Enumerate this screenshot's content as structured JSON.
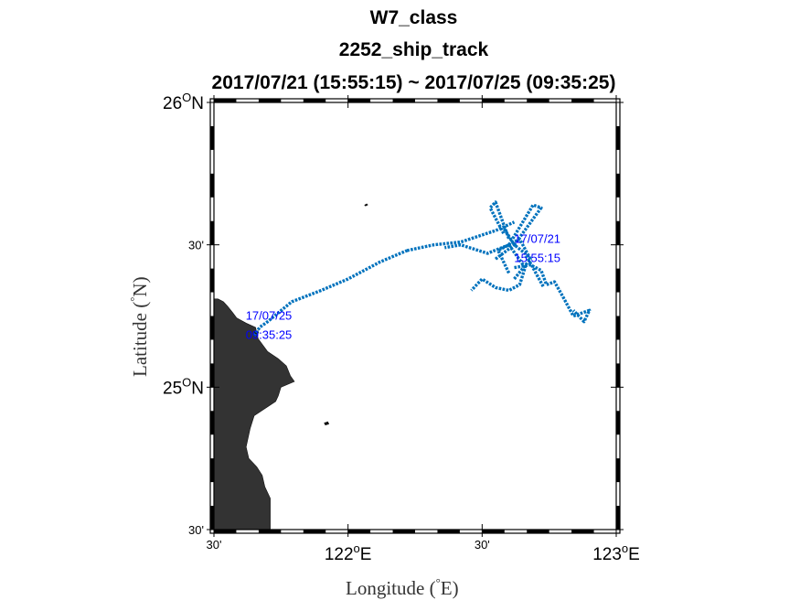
{
  "title": {
    "line1": "W7_class",
    "line2": "2252_ship_track",
    "line3": "2017/07/21 (15:55:15) ~ 2017/07/25 (09:35:25)"
  },
  "axes": {
    "xlabel_main": "Longitude (",
    "xlabel_sup": "°",
    "xlabel_unit": "E)",
    "ylabel_main": "Latitude (",
    "ylabel_sup": "°",
    "ylabel_unit": "N)",
    "x_ticks": [
      {
        "value": 121.5,
        "main": "30'",
        "sup": "",
        "small": true
      },
      {
        "value": 122.0,
        "main": "122",
        "sup": "o",
        "suffix": "E",
        "small": false
      },
      {
        "value": 122.5,
        "main": "30'",
        "sup": "",
        "small": true
      },
      {
        "value": 123.0,
        "main": "123",
        "sup": "o",
        "suffix": "E",
        "small": false
      }
    ],
    "y_ticks": [
      {
        "value": 24.5,
        "main": "30'",
        "sup": "",
        "small": true
      },
      {
        "value": 25.0,
        "main": "25",
        "sup": "O",
        "suffix": "N",
        "small": false
      },
      {
        "value": 25.5,
        "main": "30'",
        "sup": "",
        "small": true
      },
      {
        "value": 26.0,
        "main": "26",
        "sup": "O",
        "suffix": "N",
        "small": false
      }
    ]
  },
  "chart_data": {
    "type": "scatter",
    "xlim": [
      121.5,
      123.0
    ],
    "ylim": [
      24.5,
      26.0
    ],
    "grid": false,
    "track_color": "#0072bd",
    "land_color": "#333333",
    "label_color": "#0000ff",
    "start_label": {
      "date": "17/07/21",
      "time": "15:55:15",
      "lon": 122.74,
      "lat": 25.52
    },
    "end_label": {
      "date": "17/07/25",
      "time": "09:35:25",
      "lon": 121.65,
      "lat": 25.25
    },
    "land_polygon": [
      [
        121.5,
        25.31
      ],
      [
        121.515,
        25.31
      ],
      [
        121.535,
        25.3
      ],
      [
        121.55,
        25.285
      ],
      [
        121.57,
        25.262
      ],
      [
        121.585,
        25.243
      ],
      [
        121.62,
        25.225
      ],
      [
        121.655,
        25.21
      ],
      [
        121.665,
        25.17
      ],
      [
        121.7,
        25.125
      ],
      [
        121.74,
        25.1
      ],
      [
        121.77,
        25.075
      ],
      [
        121.785,
        25.04
      ],
      [
        121.8,
        25.02
      ],
      [
        121.75,
        25.0
      ],
      [
        121.74,
        24.97
      ],
      [
        121.73,
        24.95
      ],
      [
        121.65,
        24.9
      ],
      [
        121.635,
        24.855
      ],
      [
        121.62,
        24.79
      ],
      [
        121.63,
        24.75
      ],
      [
        121.66,
        24.72
      ],
      [
        121.68,
        24.69
      ],
      [
        121.69,
        24.65
      ],
      [
        121.71,
        24.61
      ],
      [
        121.71,
        24.5
      ],
      [
        121.5,
        24.5
      ]
    ],
    "islands": [
      [
        [
          122.06,
          25.64
        ],
        [
          122.07,
          25.645
        ],
        [
          122.075,
          25.64
        ],
        [
          122.065,
          25.635
        ]
      ],
      [
        [
          121.91,
          24.875
        ],
        [
          121.925,
          24.88
        ],
        [
          121.93,
          24.87
        ],
        [
          121.915,
          24.866
        ]
      ],
      [
        [
          121.65,
          25.195
        ],
        [
          121.665,
          25.2
        ],
        [
          121.668,
          25.19
        ],
        [
          121.655,
          25.187
        ]
      ]
    ],
    "track_segments": [
      [
        [
          121.65,
          25.18
        ],
        [
          121.67,
          25.21
        ],
        [
          121.7,
          25.23
        ],
        [
          121.79,
          25.3
        ],
        [
          121.9,
          25.34
        ],
        [
          122.0,
          25.38
        ],
        [
          122.12,
          25.44
        ],
        [
          122.22,
          25.48
        ]
      ],
      [
        [
          122.22,
          25.48
        ],
        [
          122.32,
          25.5
        ],
        [
          122.42,
          25.51
        ],
        [
          122.55,
          25.55
        ],
        [
          122.62,
          25.58
        ]
      ],
      [
        [
          122.6,
          25.5
        ],
        [
          122.52,
          25.47
        ],
        [
          122.42,
          25.5
        ],
        [
          122.36,
          25.49
        ]
      ],
      [
        [
          122.6,
          25.5
        ],
        [
          122.69,
          25.64
        ],
        [
          122.72,
          25.63
        ],
        [
          122.62,
          25.5
        ],
        [
          122.66,
          25.47
        ],
        [
          122.73,
          25.35
        ]
      ],
      [
        [
          122.58,
          25.54
        ],
        [
          122.53,
          25.63
        ],
        [
          122.55,
          25.65
        ],
        [
          122.6,
          25.52
        ]
      ],
      [
        [
          122.6,
          25.5
        ],
        [
          122.66,
          25.42
        ],
        [
          122.64,
          25.36
        ],
        [
          122.6,
          25.34
        ],
        [
          122.55,
          25.35
        ],
        [
          122.5,
          25.38
        ],
        [
          122.46,
          25.34
        ]
      ],
      [
        [
          122.62,
          25.42
        ],
        [
          122.68,
          25.43
        ],
        [
          122.72,
          25.41
        ],
        [
          122.74,
          25.36
        ],
        [
          122.77,
          25.37
        ],
        [
          122.8,
          25.32
        ],
        [
          122.84,
          25.25
        ],
        [
          122.9,
          25.27
        ],
        [
          122.88,
          25.23
        ],
        [
          122.84,
          25.27
        ]
      ],
      [
        [
          122.55,
          25.45
        ],
        [
          122.62,
          25.5
        ],
        [
          122.58,
          25.56
        ]
      ],
      [
        [
          122.62,
          25.38
        ],
        [
          122.68,
          25.45
        ],
        [
          122.64,
          25.52
        ],
        [
          122.56,
          25.48
        ],
        [
          122.6,
          25.4
        ]
      ]
    ]
  }
}
